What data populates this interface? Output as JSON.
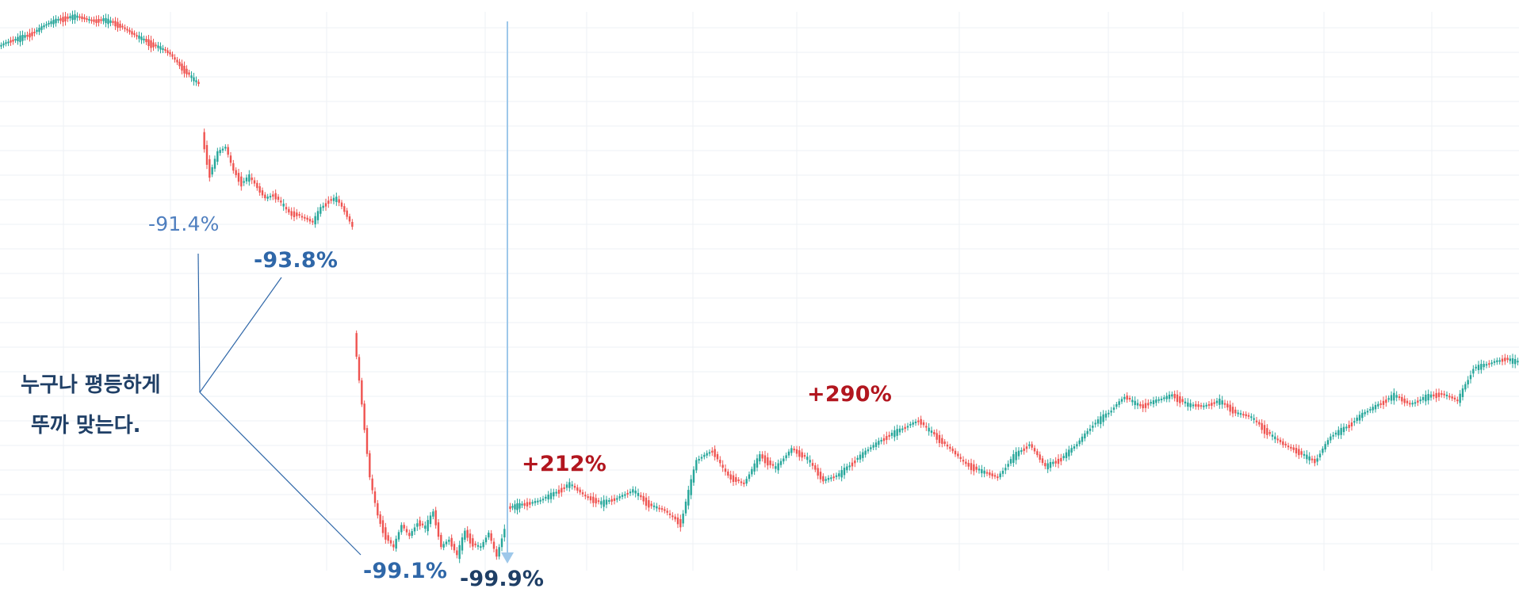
{
  "chart_data": {
    "type": "line",
    "title": "",
    "xlabel": "",
    "ylabel": "",
    "grid": true,
    "legend": "none",
    "colors": {
      "up": "#26a69a",
      "down": "#ef5350",
      "grid": "#eef1f4",
      "annotation_blue": "#2f67a8",
      "annotation_dark": "#1f3f66",
      "annotation_red": "#b2161f",
      "guide_line": "#2f67a8",
      "arrow_line": "#9ec8ea"
    },
    "series": [
      {
        "segment": "segment-1",
        "x": [
          0,
          12,
          24,
          36,
          48,
          60,
          72,
          84,
          96,
          108,
          120,
          132,
          144,
          156,
          168,
          180,
          192,
          204,
          216,
          228,
          240,
          252
        ],
        "values": [
          58,
          52,
          48,
          44,
          38,
          30,
          25,
          22,
          20,
          23,
          26,
          24,
          28,
          34,
          42,
          48,
          55,
          60,
          68,
          82,
          94,
          106
        ]
      },
      {
        "segment": "segment-2",
        "x": [
          256,
          266,
          276,
          286,
          296,
          306,
          316,
          326,
          336,
          346,
          356,
          366,
          376,
          386,
          396,
          406,
          416,
          426,
          436,
          446
        ],
        "values": [
          168,
          220,
          192,
          185,
          215,
          230,
          222,
          236,
          250,
          245,
          255,
          268,
          270,
          275,
          280,
          262,
          252,
          250,
          266,
          286
        ]
      },
      {
        "segment": "segment-3",
        "x": [
          448,
          458,
          468,
          478,
          488,
          498,
          508,
          518,
          528,
          538,
          548,
          558,
          568,
          578,
          588,
          598,
          608,
          618,
          628,
          638
        ],
        "values": [
          420,
          510,
          602,
          650,
          676,
          690,
          662,
          676,
          658,
          665,
          645,
          690,
          680,
          700,
          670,
          686,
          690,
          672,
          702,
          665
        ]
      },
      {
        "segment": "segment-4",
        "x": [
          642,
          660,
          680,
          700,
          720,
          740,
          760,
          780,
          800,
          820,
          840,
          860,
          880,
          900,
          920,
          940,
          960,
          980,
          1000,
          1020,
          1040,
          1060,
          1080,
          1100,
          1120,
          1140,
          1160,
          1180,
          1200,
          1220,
          1240,
          1260,
          1280,
          1300,
          1320,
          1340,
          1360,
          1380,
          1400,
          1420,
          1440,
          1460,
          1480,
          1500,
          1520,
          1540,
          1560,
          1580,
          1600,
          1620,
          1640,
          1660,
          1680,
          1700,
          1720,
          1740,
          1760,
          1780,
          1800,
          1820,
          1840,
          1860,
          1880,
          1900,
          1916
        ],
        "values": [
          640,
          636,
          632,
          622,
          610,
          626,
          634,
          628,
          618,
          636,
          644,
          660,
          580,
          568,
          600,
          610,
          574,
          590,
          566,
          578,
          606,
          598,
          580,
          564,
          550,
          540,
          530,
          548,
          566,
          585,
          594,
          602,
          575,
          560,
          588,
          578,
          560,
          535,
          520,
          500,
          512,
          505,
          498,
          510,
          512,
          505,
          520,
          526,
          545,
          560,
          570,
          582,
          550,
          538,
          522,
          510,
          498,
          510,
          500,
          496,
          505,
          464,
          458,
          452,
          456
        ]
      }
    ],
    "annotations": [
      {
        "text": "-91.4%",
        "style": "light-blue"
      },
      {
        "text": "-93.8%",
        "style": "blue"
      },
      {
        "text": "-99.1%",
        "style": "blue"
      },
      {
        "text": "-99.9%",
        "style": "dark"
      },
      {
        "text": "+212%",
        "style": "red"
      },
      {
        "text": "+290%",
        "style": "red"
      }
    ],
    "callout": {
      "line1": "누구나 평등하게",
      "line2": "뚜까 맞는다."
    }
  }
}
